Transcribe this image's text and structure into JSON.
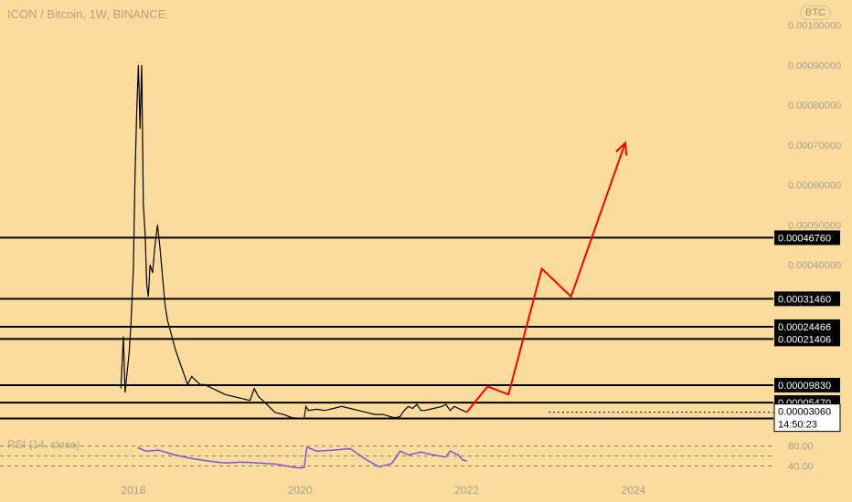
{
  "header": {
    "title": "ICON / Bitcoin, 1W, BINANCE",
    "currency_badge": "BTC"
  },
  "rsi_panel": {
    "label": "RSI (14, close)",
    "levels": [
      "80.00",
      "40.00"
    ],
    "series_color": "#7a55d6"
  },
  "colors": {
    "background": "#fbdc9c",
    "price_line": "#000000",
    "projection": "#ff0000",
    "axis_text": "#a89f8c"
  },
  "price_axis": {
    "ticks": [
      "0.00100000",
      "0.00090000",
      "0.00080000",
      "0.00070000",
      "0.00060000",
      "0.00050000",
      "0.00040000"
    ]
  },
  "time_axis": {
    "ticks": [
      "2018",
      "2020",
      "2022",
      "2024"
    ]
  },
  "countdown": "14:50:23",
  "chart_data": {
    "type": "line",
    "title": "ICON / Bitcoin, 1W, BINANCE",
    "x_range": [
      2016.4,
      2025.7
    ],
    "y_range": [
      0.0,
      0.00104
    ],
    "price_labels": [
      "0.00100000",
      "0.00090000",
      "0.00080000",
      "0.00070000",
      "0.00060000",
      "0.00050000",
      "0.00040000"
    ],
    "year_labels": [
      "2018",
      "2020",
      "2022",
      "2024"
    ],
    "horizontal_levels": [
      {
        "value": 0.0004676,
        "label": "0.00046760"
      },
      {
        "value": 0.0003146,
        "label": "0.00031460"
      },
      {
        "value": 0.00024466,
        "label": "0.00024466"
      },
      {
        "value": 0.00021406,
        "label": "0.00021406"
      },
      {
        "value": 9.83e-05,
        "label": "0.00009830"
      },
      {
        "value": 5.47e-05,
        "label": "0.00005470"
      },
      {
        "value": 1.484e-05,
        "label": "0.00001484"
      }
    ],
    "current_price": {
      "value": 3.06e-05,
      "label": "0.00003060"
    },
    "series": [
      {
        "x": [
          2017.85,
          2017.88,
          2017.9,
          2017.92,
          2017.95,
          2017.97,
          2018.0,
          2018.02,
          2018.04,
          2018.06,
          2018.08,
          2018.1,
          2018.12,
          2018.14,
          2018.16,
          2018.18,
          2018.2,
          2018.23,
          2018.26,
          2018.29,
          2018.32,
          2018.35,
          2018.38,
          2018.41,
          2018.45,
          2018.5,
          2018.55,
          2018.6,
          2018.65,
          2018.7,
          2018.75,
          2018.8,
          2018.85,
          2018.9,
          2018.95,
          2019.0,
          2019.1,
          2019.2,
          2019.3,
          2019.4,
          2019.45,
          2019.5,
          2019.6,
          2019.7,
          2019.8,
          2019.9,
          2020.0,
          2020.05,
          2020.07,
          2020.1,
          2020.2,
          2020.3,
          2020.4,
          2020.5,
          2020.6,
          2020.7,
          2020.8,
          2020.9,
          2021.0,
          2021.1,
          2021.15,
          2021.2,
          2021.25,
          2021.3,
          2021.35,
          2021.4,
          2021.45,
          2021.5,
          2021.6,
          2021.7,
          2021.75,
          2021.8,
          2021.85,
          2021.9,
          2021.95,
          2022.0
        ],
        "y": [
          9e-05,
          0.00022,
          8e-05,
          0.00012,
          0.00018,
          0.00025,
          0.00039,
          0.00062,
          0.00078,
          0.0009,
          0.00074,
          0.0009,
          0.00055,
          0.00048,
          0.00035,
          0.00032,
          0.0004,
          0.00038,
          0.00045,
          0.0005,
          0.00044,
          0.00037,
          0.0003,
          0.00026,
          0.00023,
          0.00019,
          0.00016,
          0.00013,
          0.0001,
          0.00012,
          0.00011,
          0.0001,
          0.0001,
          9.5e-05,
          9e-05,
          8.5e-05,
          7.5e-05,
          7e-05,
          6.5e-05,
          6e-05,
          9e-05,
          7e-05,
          5e-05,
          3e-05,
          2.5e-05,
          1.7e-05,
          1.5e-05,
          1.6e-05,
          4.5e-05,
          3.5e-05,
          3.8e-05,
          3.5e-05,
          4e-05,
          4.5e-05,
          4e-05,
          3.5e-05,
          3e-05,
          2.5e-05,
          2.5e-05,
          1.8e-05,
          1.7e-05,
          2e-05,
          3.5e-05,
          4.5e-05,
          4e-05,
          5e-05,
          3.5e-05,
          3.5e-05,
          4e-05,
          4.5e-05,
          5e-05,
          3.5e-05,
          4.5e-05,
          4e-05,
          3.5e-05,
          3.06e-05
        ]
      }
    ],
    "projection": {
      "x": [
        2022.0,
        2022.25,
        2022.5,
        2022.9,
        2023.25,
        2023.9
      ],
      "y": [
        3.06e-05,
        9.5e-05,
        7.5e-05,
        0.00039,
        0.00032,
        0.000705
      ]
    },
    "rsi": {
      "levels": [
        80,
        40
      ],
      "x": [
        2018.05,
        2018.15,
        2018.3,
        2018.5,
        2018.7,
        2018.9,
        2019.1,
        2019.3,
        2019.5,
        2019.7,
        2019.9,
        2020.0,
        2020.05,
        2020.08,
        2020.2,
        2020.4,
        2020.6,
        2020.8,
        2020.95,
        2021.1,
        2021.2,
        2021.3,
        2021.45,
        2021.6,
        2021.75,
        2021.8,
        2021.9,
        2021.95,
        2022.0
      ],
      "y": [
        77,
        70,
        72,
        62,
        55,
        50,
        46,
        48,
        46,
        44,
        38,
        36,
        37,
        78,
        70,
        72,
        75,
        52,
        38,
        45,
        70,
        62,
        68,
        62,
        58,
        70,
        62,
        52,
        50
      ]
    }
  }
}
